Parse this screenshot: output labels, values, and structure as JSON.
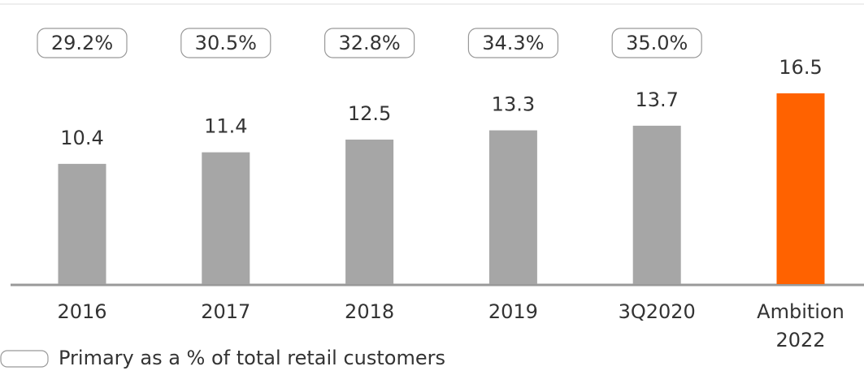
{
  "chart_data": {
    "type": "bar",
    "categories": [
      "2016",
      "2017",
      "2018",
      "2019",
      "3Q2020",
      "Ambition 2022"
    ],
    "values": [
      10.4,
      11.4,
      12.5,
      13.3,
      13.7,
      16.5
    ],
    "colors": [
      "#a6a6a6",
      "#a6a6a6",
      "#a6a6a6",
      "#a6a6a6",
      "#a6a6a6",
      "#ff6200"
    ],
    "boxed_series": {
      "name": "Primary as a % of total retail customers",
      "values": [
        29.2,
        30.5,
        32.8,
        34.3,
        35.0
      ],
      "value_labels": [
        "29.2%",
        "30.5%",
        "32.8%",
        "34.3%",
        "35.0%"
      ]
    }
  }
}
